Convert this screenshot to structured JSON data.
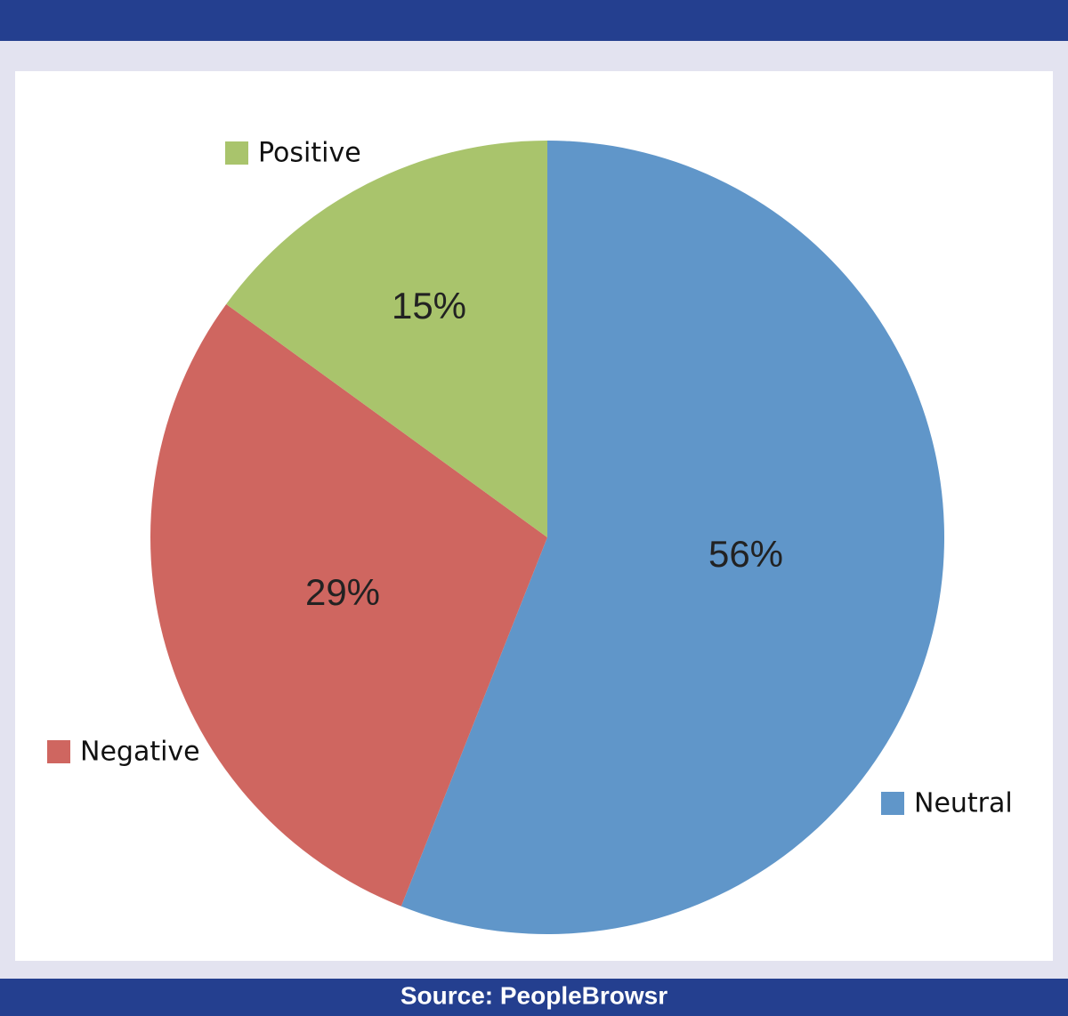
{
  "chart_data": {
    "type": "pie",
    "categories": [
      "Neutral",
      "Negative",
      "Positive"
    ],
    "values": [
      56,
      29,
      15
    ],
    "value_labels": [
      "56%",
      "29%",
      "15%"
    ],
    "colors": [
      "#6096c9",
      "#cf6660",
      "#a9c46c"
    ],
    "source": "Source: PeopleBrowsr"
  }
}
